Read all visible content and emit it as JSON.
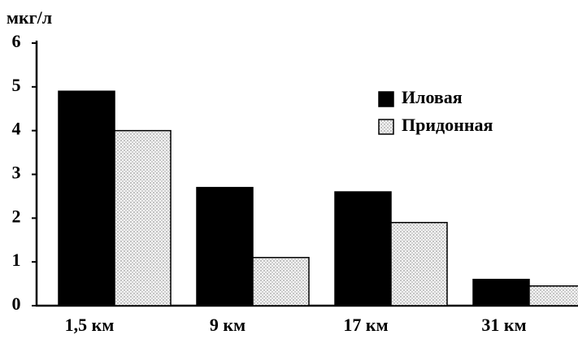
{
  "chart_data": {
    "type": "bar",
    "y_label": "мкг/л",
    "categories": [
      "1,5 км",
      "9 км",
      "17 км",
      "31 км"
    ],
    "series": [
      {
        "name": "Иловая",
        "color": "#000000",
        "values": [
          4.9,
          2.7,
          2.6,
          0.6
        ]
      },
      {
        "name": "Придонная",
        "color": "#e6e6e6",
        "pattern": "dots",
        "values": [
          4.0,
          1.1,
          1.9,
          0.45
        ]
      }
    ],
    "ylim": [
      0,
      6
    ],
    "yticks": [
      0,
      1,
      2,
      3,
      4,
      5,
      6
    ],
    "grid": false,
    "legend": "upper right"
  }
}
